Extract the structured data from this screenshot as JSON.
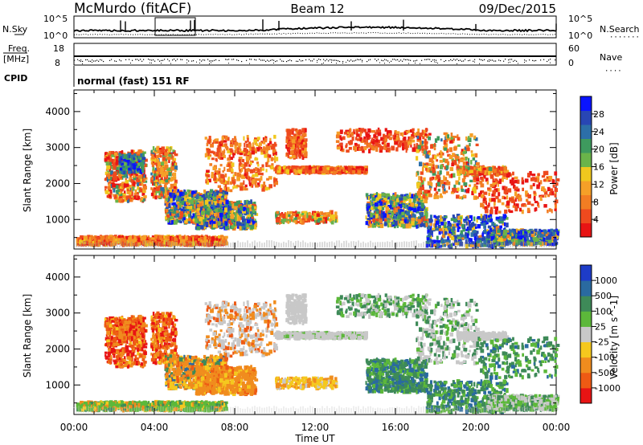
{
  "header": {
    "station": "McMurdo (fitACF)",
    "beam": "Beam 12",
    "date": "09/Dec/2015"
  },
  "summary_panels": {
    "nsky_label": "N.Sky",
    "nsearch_label": "N.Search",
    "freq_label": "Freq.",
    "freq_unit": "[MHz]",
    "nave_label": "Nave",
    "cpid_label": "CPID",
    "cpid_text": "normal (fast) 151 RF",
    "nsky_ticks": [
      "10^5",
      "10^0"
    ],
    "nsearch_ticks": [
      "10^5",
      "10^0"
    ],
    "freq_ticks": [
      "18",
      "8"
    ],
    "nave_ticks": [
      "60",
      "0"
    ]
  },
  "x_axis": {
    "label": "Time UT",
    "ticks": [
      "00:00",
      "04:00",
      "08:00",
      "12:00",
      "16:00",
      "20:00",
      "00:00"
    ]
  },
  "chart_data": [
    {
      "type": "heatmap",
      "name": "power",
      "ylabel": "Slant Range [km]",
      "yticks": [
        1000,
        2000,
        3000,
        4000
      ],
      "ylim": [
        180,
        4600
      ],
      "xlim_hours": [
        0,
        24
      ],
      "colorbar": {
        "title": "Power [dB]",
        "ticks": [
          "4",
          "8",
          "12",
          "16",
          "20",
          "24",
          "28"
        ],
        "colors": [
          "#0a14ff",
          "#2846b4",
          "#2c6fa8",
          "#3e9a5e",
          "#6ab44a",
          "#f0c81e",
          "#f5a028",
          "#f27d23",
          "#ee4a1e",
          "#e81414"
        ]
      }
    },
    {
      "type": "heatmap",
      "name": "velocity",
      "ylabel": "Slant Range [km]",
      "yticks": [
        1000,
        2000,
        3000,
        4000
      ],
      "ylim": [
        180,
        4600
      ],
      "xlim_hours": [
        0,
        24
      ],
      "colorbar": {
        "title": "Velocity [m s^-1]",
        "ticks": [
          "1000",
          "500",
          "100",
          "25",
          "-25",
          "-100",
          "-500",
          "-1000"
        ],
        "colors": [
          "#1e3cc8",
          "#2a6aa0",
          "#3e8a58",
          "#5cb83a",
          "#c8c8c8",
          "#f5c81e",
          "#f08c1e",
          "#ee5a14",
          "#e81414"
        ]
      }
    }
  ]
}
